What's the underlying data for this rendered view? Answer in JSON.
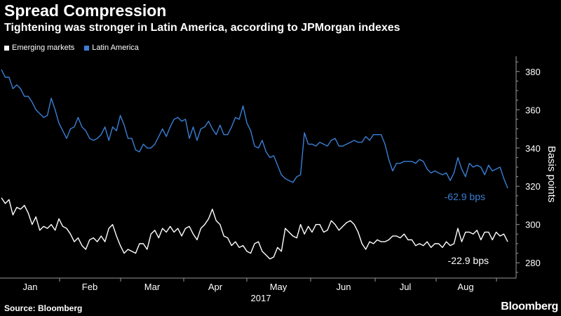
{
  "header": {
    "title": "Spread Compression",
    "subtitle": "Tightening was stronger in Latin America, according to JPMorgan indexes"
  },
  "footer": {
    "source": "Source: Bloomberg",
    "brand": "Bloomberg"
  },
  "colors": {
    "background": "#000000",
    "em_line": "#ffffff",
    "latam_line": "#3a7fd5",
    "axis": "#9a9a9a"
  },
  "chart_data": {
    "type": "line",
    "title": "Spread Compression",
    "subtitle": "Tightening was stronger in Latin America, according to JPMorgan indexes",
    "xlabel": "2017",
    "ylabel": "Basis points",
    "x_tick_labels": [
      "Jan",
      "Feb",
      "Mar",
      "Apr",
      "May",
      "Jun",
      "Jul",
      "Aug"
    ],
    "y_ticks": [
      280,
      300,
      320,
      340,
      360,
      380
    ],
    "ylim": [
      272,
      388
    ],
    "y_axis_side": "right",
    "grid": false,
    "legend_position": "top-left",
    "annotations": [
      {
        "series": "Latin America",
        "text": "-62.9 bps"
      },
      {
        "series": "Emerging markets",
        "text": "-22.9 bps"
      }
    ],
    "series": [
      {
        "name": "Emerging markets",
        "color": "#ffffff",
        "values": [
          314,
          311,
          313,
          305,
          309,
          308,
          310,
          306,
          300,
          304,
          297,
          299,
          298,
          300,
          297,
          303,
          299,
          298,
          295,
          291,
          293,
          289,
          287,
          292,
          293,
          291,
          294,
          291,
          298,
          300,
          294,
          289,
          285,
          287,
          286,
          285,
          290,
          290,
          287,
          295,
          297,
          293,
          298,
          296,
          299,
          296,
          298,
          294,
          298,
          299,
          295,
          292,
          298,
          300,
          303,
          308,
          302,
          300,
          294,
          293,
          289,
          291,
          288,
          289,
          286,
          285,
          290,
          291,
          286,
          284,
          282,
          283,
          288,
          286,
          298,
          296,
          294,
          293,
          300,
          295,
          299,
          296,
          300,
          300,
          296,
          297,
          302,
          300,
          297,
          299,
          301,
          302,
          300,
          296,
          290,
          287,
          291,
          290,
          292,
          291,
          291,
          292,
          294,
          294,
          293,
          295,
          292,
          292,
          289,
          290,
          289,
          291,
          288,
          290,
          290,
          288,
          291,
          289,
          290,
          298,
          291,
          296,
          296,
          295,
          297,
          292,
          296,
          296,
          292,
          296,
          294,
          295,
          291
        ]
      },
      {
        "name": "Latin America",
        "color": "#3a7fd5",
        "values": [
          381,
          377,
          377,
          371,
          373,
          371,
          367,
          367,
          364,
          360,
          358,
          356,
          357,
          366,
          360,
          353,
          349,
          345,
          350,
          351,
          356,
          351,
          349,
          345,
          344,
          345,
          347,
          351,
          344,
          351,
          349,
          357,
          352,
          345,
          345,
          339,
          338,
          342,
          340,
          340,
          342,
          346,
          350,
          346,
          351,
          355,
          356,
          354,
          355,
          345,
          351,
          344,
          350,
          351,
          354,
          350,
          347,
          352,
          347,
          347,
          351,
          356,
          355,
          362,
          353,
          349,
          341,
          340,
          344,
          338,
          335,
          336,
          331,
          326,
          324,
          323,
          322,
          325,
          326,
          348,
          342,
          342,
          341,
          343,
          342,
          341,
          344,
          345,
          341,
          341,
          342,
          343,
          344,
          343,
          343,
          346,
          344,
          347,
          347,
          347,
          342,
          334,
          328,
          332,
          332,
          333,
          333,
          333,
          332,
          334,
          333,
          329,
          327,
          328,
          327,
          326,
          327,
          323,
          327,
          335,
          329,
          325,
          332,
          330,
          331,
          330,
          326,
          331,
          328,
          329,
          330,
          324,
          319
        ]
      }
    ]
  }
}
